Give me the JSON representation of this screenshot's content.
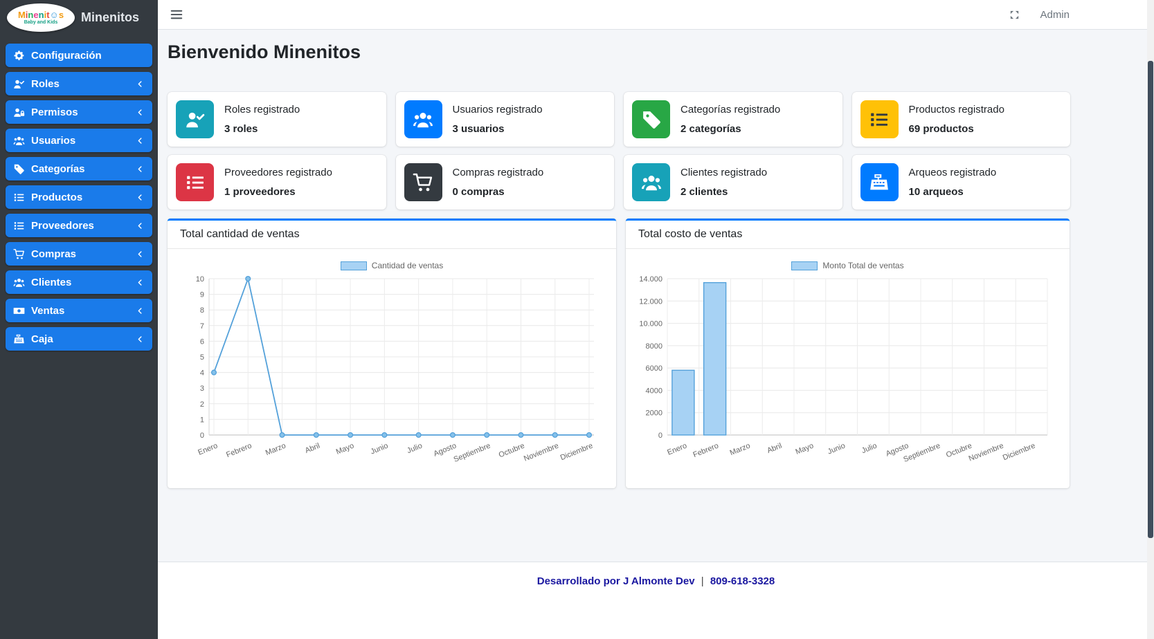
{
  "brand": {
    "app_name": "Minenitos",
    "logo_sub": "Baby and Kids",
    "logo_letters": [
      {
        "ch": "M",
        "c": "#f39c12"
      },
      {
        "ch": "i",
        "c": "#e74c3c"
      },
      {
        "ch": "n",
        "c": "#27ae60"
      },
      {
        "ch": "e",
        "c": "#e84393"
      },
      {
        "ch": "n",
        "c": "#16a085"
      },
      {
        "ch": "i",
        "c": "#f39c12"
      },
      {
        "ch": "t",
        "c": "#e74c3c"
      },
      {
        "ch": "☺",
        "c": "#3498db"
      },
      {
        "ch": "s",
        "c": "#f39c12"
      }
    ]
  },
  "topbar": {
    "user_label": "Admin"
  },
  "sidebar": {
    "items": [
      {
        "label": "Configuración",
        "icon": "gear-icon",
        "chevron": false
      },
      {
        "label": "Roles",
        "icon": "user-check-icon",
        "chevron": true
      },
      {
        "label": "Permisos",
        "icon": "user-lock-icon",
        "chevron": true
      },
      {
        "label": "Usuarios",
        "icon": "users-icon",
        "chevron": true
      },
      {
        "label": "Categorías",
        "icon": "tag-icon",
        "chevron": true
      },
      {
        "label": "Productos",
        "icon": "list-icon",
        "chevron": true
      },
      {
        "label": "Proveedores",
        "icon": "list-icon",
        "chevron": true
      },
      {
        "label": "Compras",
        "icon": "cart-icon",
        "chevron": true
      },
      {
        "label": "Clientes",
        "icon": "users-icon",
        "chevron": true
      },
      {
        "label": "Ventas",
        "icon": "money-bill-icon",
        "chevron": true
      },
      {
        "label": "Caja",
        "icon": "cash-register-icon",
        "chevron": true
      }
    ]
  },
  "page": {
    "heading": "Bienvenido Minenitos"
  },
  "stat_cards": [
    {
      "title": "Roles registrado",
      "value": "3 roles",
      "icon": "user-check-icon",
      "color": "#17a2b8",
      "icon_color": "#ffffff"
    },
    {
      "title": "Usuarios registrado",
      "value": "3 usuarios",
      "icon": "users-icon",
      "color": "#007bff",
      "icon_color": "#ffffff"
    },
    {
      "title": "Categorías registrado",
      "value": "2 categorías",
      "icon": "tag-icon",
      "color": "#28a745",
      "icon_color": "#ffffff"
    },
    {
      "title": "Productos registrado",
      "value": "69 productos",
      "icon": "list-icon",
      "color": "#ffc107",
      "icon_color": "#343a40"
    },
    {
      "title": "Proveedores registrado",
      "value": "1 proveedores",
      "icon": "list-icon",
      "color": "#dc3545",
      "icon_color": "#ffffff"
    },
    {
      "title": "Compras registrado",
      "value": "0 compras",
      "icon": "cart-icon",
      "color": "#343a40",
      "icon_color": "#ffffff"
    },
    {
      "title": "Clientes registrado",
      "value": "2 clientes",
      "icon": "users-icon",
      "color": "#17a2b8",
      "icon_color": "#ffffff"
    },
    {
      "title": "Arqueos registrado",
      "value": "10 arqueos",
      "icon": "cash-register-icon",
      "color": "#007bff",
      "icon_color": "#ffffff"
    }
  ],
  "chart_data": [
    {
      "type": "line",
      "title": "Total cantidad de ventas",
      "legend": "Cantidad de ventas",
      "legend_position": "top",
      "categories": [
        "Enero",
        "Febrero",
        "Marzo",
        "Abril",
        "Mayo",
        "Junio",
        "Julio",
        "Agosto",
        "Septiembre",
        "Octubre",
        "Noviembre",
        "Diciembre"
      ],
      "values": [
        4,
        10,
        0,
        0,
        0,
        0,
        0,
        0,
        0,
        0,
        0,
        0
      ],
      "ylim": [
        0,
        10
      ],
      "ytick_labels": [
        "0",
        "1",
        "2",
        "3",
        "4",
        "5",
        "6",
        "7",
        "8",
        "9",
        "10"
      ],
      "grid": true
    },
    {
      "type": "bar",
      "title": "Total costo de ventas",
      "legend": "Monto Total de ventas",
      "legend_position": "top",
      "categories": [
        "Enero",
        "Febrero",
        "Marzo",
        "Abril",
        "Mayo",
        "Junio",
        "Julio",
        "Agosto",
        "Septiembre",
        "Octubre",
        "Noviembre",
        "Diciembre"
      ],
      "values": [
        5800,
        13650,
        0,
        0,
        0,
        0,
        0,
        0,
        0,
        0,
        0,
        0
      ],
      "ylim": [
        0,
        14000
      ],
      "ytick_labels": [
        "0",
        "2000",
        "4000",
        "6000",
        "8000",
        "10.000",
        "12.000",
        "14.000"
      ],
      "grid": true
    }
  ],
  "footer": {
    "text_prefix": "Desarrollado por",
    "author": "J Almonte Dev",
    "separator": "|",
    "phone": "809-618-3328"
  },
  "colors": {
    "accent": "#007bff",
    "sidebar_bg": "#343a40",
    "sidebar_item": "#1a7bea",
    "content_bg": "#f4f6f9",
    "chart_stroke": "#54a1da",
    "chart_fill": "#a7d2f4",
    "footer_text": "#1a17a0"
  }
}
